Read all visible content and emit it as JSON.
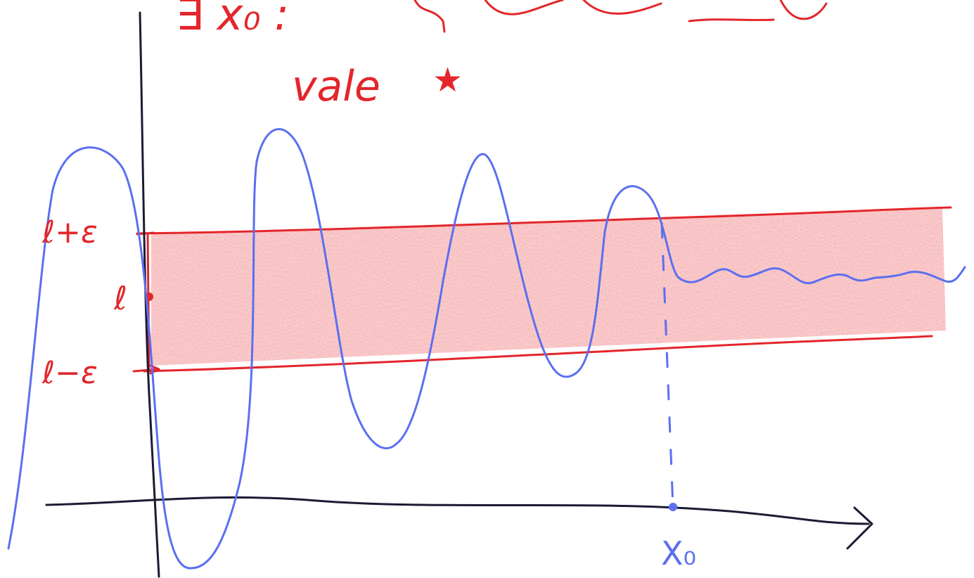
{
  "colors": {
    "ink_red": "#e3262b",
    "ink_blue": "#5b6ff0",
    "ink_black": "#1b1b33",
    "band_fill": "#ec4a4f"
  },
  "header": {
    "top_formula_fragment": "∃ x₀ :",
    "note_word": "vale",
    "note_star": "★"
  },
  "labels": {
    "upper": "ℓ+ε",
    "middle": "ℓ",
    "lower": "ℓ−ε",
    "x_axis_point": "X₀"
  },
  "diagram": {
    "band": "upper and lower red lines enclosing a red shaded band",
    "curve": "blue oscillating curve with decaying amplitude that stays inside the band after x0",
    "guide": "blue dashed vertical line from the curve down to x0 on the x-axis"
  }
}
